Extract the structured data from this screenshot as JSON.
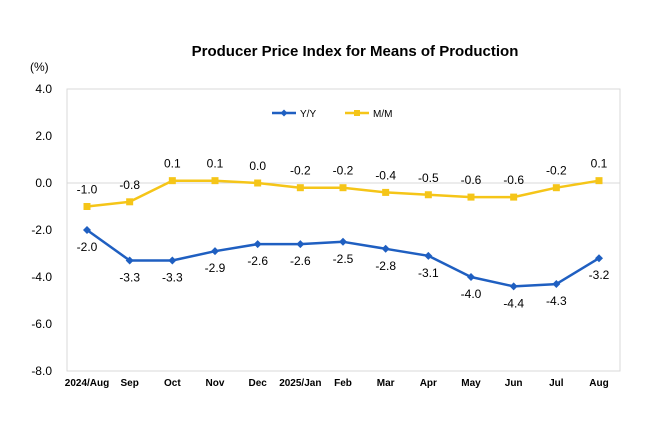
{
  "chart_data": {
    "type": "line",
    "title": "Producer Price Index for Means of Production",
    "unit_label": "(%)",
    "categories": [
      "2024/Aug",
      "Sep",
      "Oct",
      "Nov",
      "Dec",
      "2025/Jan",
      "Feb",
      "Mar",
      "Apr",
      "May",
      "Jun",
      "Jul",
      "Aug"
    ],
    "series": [
      {
        "name": "Y/Y",
        "color": "#1F5FC1",
        "values": [
          -2.0,
          -3.3,
          -3.3,
          -2.9,
          -2.6,
          -2.6,
          -2.5,
          -2.8,
          -3.1,
          -4.0,
          -4.4,
          -4.3,
          -3.2
        ],
        "label_position": "below"
      },
      {
        "name": "M/M",
        "color": "#F5C518",
        "values": [
          -1.0,
          -0.8,
          0.1,
          0.1,
          0.0,
          -0.2,
          -0.2,
          -0.4,
          -0.5,
          -0.6,
          -0.6,
          -0.2,
          0.1
        ],
        "label_position": "above"
      }
    ],
    "ylim": [
      -8.0,
      4.0
    ],
    "yticks": [
      "4.0",
      "2.0",
      "0.0",
      "-2.0",
      "-4.0",
      "-6.0",
      "-8.0"
    ],
    "xlabel": "",
    "ylabel": "",
    "grid": false,
    "legend_position": "top-center",
    "zero_line_color": "#D9D9D9",
    "frame_color": "#D9D9D9"
  }
}
